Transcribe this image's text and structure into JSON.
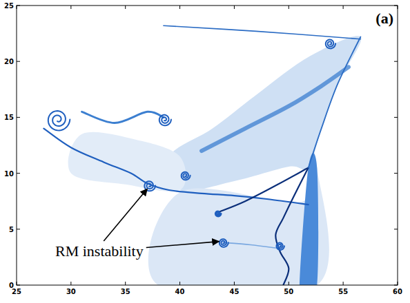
{
  "chart_data": {
    "type": "field",
    "xlim": [
      25,
      60
    ],
    "ylim": [
      0,
      25
    ],
    "xticks": [
      25,
      30,
      35,
      40,
      45,
      50,
      55,
      60
    ],
    "yticks": [
      0,
      5,
      10,
      15,
      20,
      25
    ],
    "panel_label": "(a)",
    "annotation": {
      "text": "RM instability",
      "x": [
        37,
        43.6
      ],
      "y": [
        8.6,
        3.9
      ]
    },
    "regions": [
      {
        "x": [
          40,
          45,
          50,
          51.8,
          53,
          54.5,
          56.6,
          52,
          47,
          43,
          39
        ],
        "y": [
          8.5,
          9.3,
          10.6,
          10.5,
          14,
          18,
          22.2,
          20.5,
          17,
          14,
          11.5
        ],
        "color": "#cfe0f4"
      },
      {
        "x": [
          30,
          35,
          40,
          40,
          36,
          31
        ],
        "y": [
          10,
          9,
          8.5,
          11.5,
          13,
          13.5
        ],
        "color": "#e2ecf8"
      },
      {
        "x": [
          40,
          51,
          51.8,
          52.6,
          52.6,
          38
        ],
        "y": [
          8.3,
          7.4,
          10.5,
          10.5,
          0,
          0
        ],
        "color": "#dbe7f6"
      },
      {
        "x": [
          51,
          51.8,
          52.6,
          52.6,
          51.5
        ],
        "y": [
          0,
          10.5,
          10.5,
          0,
          0
        ],
        "color": "#4a8ad9"
      }
    ],
    "interfaces": [
      {
        "x": [
          38.5,
          47,
          56.6
        ],
        "y": [
          23.2,
          22.7,
          22.0
        ],
        "color": "#2b6cc4"
      },
      {
        "x": [
          27.5,
          30,
          33,
          35.5,
          37,
          39,
          42,
          45,
          48,
          51.8
        ],
        "y": [
          14,
          12.3,
          11,
          10,
          9.1,
          8.5,
          8.2,
          8.0,
          7.7,
          7.2
        ],
        "color": "#1f5fbf"
      },
      {
        "x": [
          43.5,
          46,
          49,
          51.8
        ],
        "y": [
          6.5,
          7.5,
          9,
          10.5
        ],
        "color": "#0b2f7a"
      },
      {
        "x": [
          51.8,
          50.5,
          49.5,
          48.8,
          49.2,
          50,
          49.5
        ],
        "y": [
          10.5,
          8,
          6,
          4.5,
          3,
          1.5,
          0
        ],
        "color": "#0b2f7a"
      },
      {
        "x": [
          42,
          46,
          50,
          53,
          55.5
        ],
        "y": [
          12,
          14,
          16,
          17.8,
          19.5
        ],
        "color": "#3c7fd0"
      },
      {
        "x": [
          51.8,
          53,
          54.5,
          56.6
        ],
        "y": [
          10.5,
          14,
          18,
          22.2
        ],
        "color": "#2b6cc4"
      },
      {
        "x": [
          44,
          46.5,
          49
        ],
        "y": [
          3.8,
          3.6,
          3.3
        ],
        "color": "#7aa8e0"
      },
      {
        "x": [
          31,
          34,
          37,
          38.5
        ],
        "y": [
          15.5,
          14.5,
          15.5,
          15
        ],
        "color": "#3c7fd0"
      }
    ],
    "vortices": {
      "x": [
        28.8,
        37.2,
        40.5,
        38.6,
        44,
        49.2,
        53.8,
        43.5
      ],
      "y": [
        14.8,
        8.9,
        9.8,
        14.8,
        3.8,
        3.5,
        21.6,
        6.4
      ],
      "r": [
        1.1,
        0.55,
        0.45,
        0.6,
        0.45,
        0.4,
        0.5,
        0.3
      ],
      "color": "#1f5fbf"
    }
  }
}
